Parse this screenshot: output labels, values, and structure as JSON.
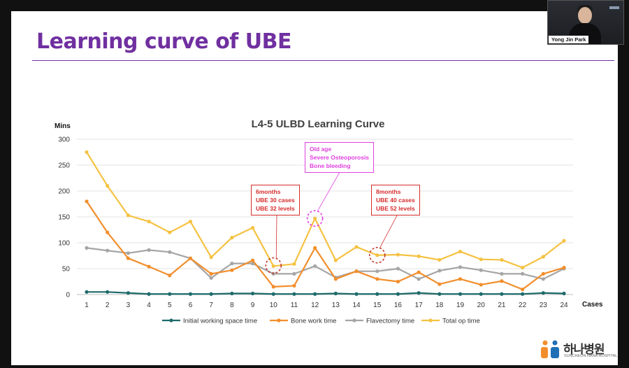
{
  "slide": {
    "title": "Learning curve of UBE"
  },
  "video": {
    "participant_name": "Yong Jin Park"
  },
  "brand": {
    "name": "하나병원",
    "sub": "SUNCHEON HANA HOSPITAL"
  },
  "chart_data": {
    "type": "line",
    "title": "L4-5 ULBD Learning Curve",
    "ylabel": "Mins",
    "xlabel": "Cases",
    "ylim": [
      0,
      300
    ],
    "yticks": [
      0,
      50,
      100,
      150,
      200,
      250,
      300
    ],
    "x": [
      1,
      2,
      3,
      4,
      5,
      6,
      7,
      8,
      9,
      10,
      11,
      12,
      13,
      14,
      15,
      16,
      17,
      18,
      19,
      20,
      21,
      22,
      23,
      24
    ],
    "legend_position": "bottom",
    "grid": "horizontal",
    "series": [
      {
        "name": "Initial working space time",
        "color": "#1f6b6b",
        "values": [
          5,
          5,
          3,
          1,
          1,
          1,
          1,
          2,
          2,
          1,
          1,
          1,
          2,
          1,
          1,
          1,
          3,
          1,
          1,
          1,
          1,
          1,
          3,
          2
        ]
      },
      {
        "name": "Bone work time",
        "color": "#f28e2b",
        "values": [
          180,
          120,
          70,
          54,
          37,
          70,
          40,
          47,
          66,
          15,
          17,
          90,
          30,
          45,
          30,
          25,
          43,
          20,
          30,
          19,
          26,
          10,
          40,
          52
        ]
      },
      {
        "name": "Flavectomy time",
        "color": "#a5a5a5",
        "values": [
          90,
          85,
          80,
          86,
          82,
          70,
          32,
          60,
          60,
          40,
          40,
          55,
          33,
          45,
          45,
          50,
          30,
          46,
          53,
          47,
          40,
          40,
          30,
          50
        ]
      },
      {
        "name": "Total op time",
        "color": "#f5c242",
        "values": [
          275,
          210,
          153,
          141,
          120,
          141,
          72,
          110,
          129,
          55,
          59,
          147,
          66,
          92,
          76,
          77,
          74,
          67,
          83,
          68,
          67,
          52,
          73,
          104
        ]
      }
    ],
    "annotations": [
      {
        "id": "callout-6months",
        "color": "#d62c2c",
        "circle_color": "#c0392b",
        "case": 10,
        "value": 56,
        "lines": [
          "6months",
          "UBE 30 cases",
          "UBE 32 levels"
        ]
      },
      {
        "id": "callout-old-age",
        "color": "#e040e0",
        "circle_color": "#e040e0",
        "case": 12,
        "value": 147,
        "lines": [
          "Old age",
          "Severe Osteoporosis",
          "Bone bleeding"
        ]
      },
      {
        "id": "callout-8months",
        "color": "#d62c2c",
        "circle_color": "#c0392b",
        "case": 15,
        "value": 76,
        "lines": [
          "8months",
          "UBE 40 cases",
          "UBE 52 levels"
        ]
      }
    ]
  }
}
